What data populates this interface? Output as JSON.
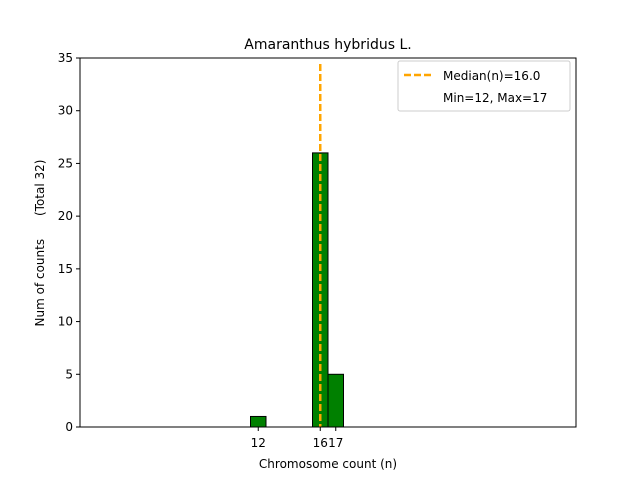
{
  "chart_data": {
    "type": "bar",
    "title": "Amaranthus hybridus L.",
    "xlabel": "Chromosome count (n)",
    "ylabel": "Num of counts      (Total 32)",
    "x": [
      12,
      16,
      17
    ],
    "values": [
      1,
      26,
      5
    ],
    "xlim": [
      0.5,
      32.5
    ],
    "ylim": [
      0,
      35
    ],
    "yticks": [
      0,
      5,
      10,
      15,
      20,
      25,
      30,
      35
    ],
    "xticks": [
      12,
      16,
      17
    ],
    "bar_color": "#008000",
    "bar_edge_color": "#000000",
    "grid": false,
    "median_line": {
      "x": 16.0,
      "color": "#ffa500",
      "style": "dashed"
    },
    "legend": {
      "placement": "top-right",
      "entries": [
        "Median(n)=16.0",
        "Min=12, Max=17"
      ]
    }
  }
}
